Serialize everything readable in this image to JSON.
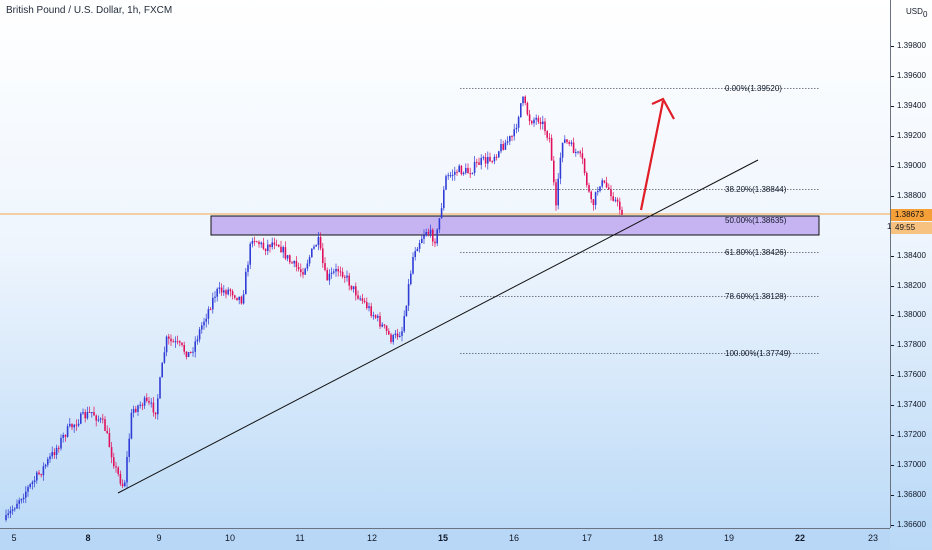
{
  "header": {
    "title": "British Pound / U.S. Dollar, 1h, FXCM"
  },
  "axis": {
    "currency": "USD",
    "currency_suffix": "0",
    "y_ticks": [
      "1.39800",
      "1.39600",
      "1.39400",
      "1.39200",
      "1.39000",
      "1.38800",
      "1.38400",
      "1.38200",
      "1.38000",
      "1.37800",
      "1.37600",
      "1.37400",
      "1.37200",
      "1.37000",
      "1.36800",
      "1.36600"
    ],
    "x_ticks": [
      {
        "label": "5",
        "bold": false
      },
      {
        "label": "8",
        "bold": true
      },
      {
        "label": "9",
        "bold": false
      },
      {
        "label": "10",
        "bold": false
      },
      {
        "label": "11",
        "bold": false
      },
      {
        "label": "12",
        "bold": false
      },
      {
        "label": "15",
        "bold": true
      },
      {
        "label": "16",
        "bold": false
      },
      {
        "label": "17",
        "bold": false
      },
      {
        "label": "18",
        "bold": false
      },
      {
        "label": "19",
        "bold": false
      },
      {
        "label": "22",
        "bold": true
      },
      {
        "label": "23",
        "bold": false
      }
    ],
    "current_price": "1.38673",
    "countdown": "49:55",
    "zone_marker": "1"
  },
  "fibonacci": [
    {
      "label": "0.00%(1.39520)",
      "price": 1.3952
    },
    {
      "label": "38.20%(1.38844)",
      "price": 1.38844
    },
    {
      "label": "50.00%(1.38635)",
      "price": 1.38635
    },
    {
      "label": "61.80%(1.38426)",
      "price": 1.38426
    },
    {
      "label": "78.60%(1.38128)",
      "price": 1.38128
    },
    {
      "label": "100.00%(1.37749)",
      "price": 1.37749
    }
  ],
  "colors": {
    "bull": "#2f3dd6",
    "bear": "#e0105a",
    "zone_fill": "#c5b3f2",
    "zone_border": "#111111",
    "arrow": "#e11d27",
    "price_tag": "#f59f39",
    "price_line": "#f5a54a"
  }
}
